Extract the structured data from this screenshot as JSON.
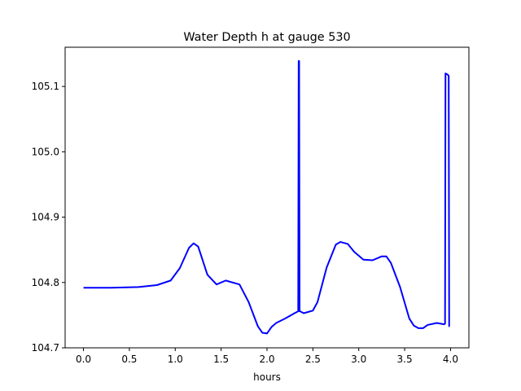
{
  "chart_data": {
    "type": "line",
    "title": "Water Depth h at gauge 530",
    "xlabel": "hours",
    "ylabel": "",
    "xlim": [
      -0.2,
      4.2
    ],
    "ylim": [
      104.7,
      105.16
    ],
    "grid": false,
    "xticks": [
      0.0,
      0.5,
      1.0,
      1.5,
      2.0,
      2.5,
      3.0,
      3.5,
      4.0
    ],
    "xtick_labels": [
      "0.0",
      "0.5",
      "1.0",
      "1.5",
      "2.0",
      "2.5",
      "3.0",
      "3.5",
      "4.0"
    ],
    "yticks": [
      104.7,
      104.8,
      104.9,
      105.0,
      105.1
    ],
    "ytick_labels": [
      "104.7",
      "104.8",
      "104.9",
      "105.0",
      "105.1"
    ],
    "series": [
      {
        "color": "#0000ff",
        "x": [
          0.0,
          0.3,
          0.6,
          0.8,
          0.95,
          1.05,
          1.15,
          1.2,
          1.25,
          1.35,
          1.45,
          1.55,
          1.6,
          1.7,
          1.8,
          1.9,
          1.95,
          2.0,
          2.05,
          2.1,
          2.2,
          2.3,
          2.34,
          2.345,
          2.35,
          2.355,
          2.36,
          2.4,
          2.5,
          2.55,
          2.65,
          2.75,
          2.8,
          2.88,
          2.95,
          3.05,
          3.15,
          3.25,
          3.3,
          3.35,
          3.45,
          3.55,
          3.6,
          3.65,
          3.7,
          3.75,
          3.85,
          3.93,
          3.94,
          3.945,
          3.97,
          3.98,
          3.985,
          3.99
        ],
        "y": [
          104.792,
          104.792,
          104.793,
          104.796,
          104.803,
          104.822,
          104.853,
          104.86,
          104.855,
          104.812,
          104.797,
          104.803,
          104.801,
          104.797,
          104.77,
          104.733,
          104.723,
          104.722,
          104.732,
          104.738,
          104.745,
          104.753,
          104.756,
          105.139,
          105.139,
          104.756,
          104.756,
          104.753,
          104.757,
          104.77,
          104.823,
          104.858,
          104.862,
          104.859,
          104.847,
          104.835,
          104.834,
          104.84,
          104.84,
          104.83,
          104.793,
          104.745,
          104.734,
          104.73,
          104.73,
          104.735,
          104.738,
          104.736,
          104.737,
          105.12,
          105.118,
          105.116,
          104.733,
          104.733
        ]
      }
    ]
  }
}
